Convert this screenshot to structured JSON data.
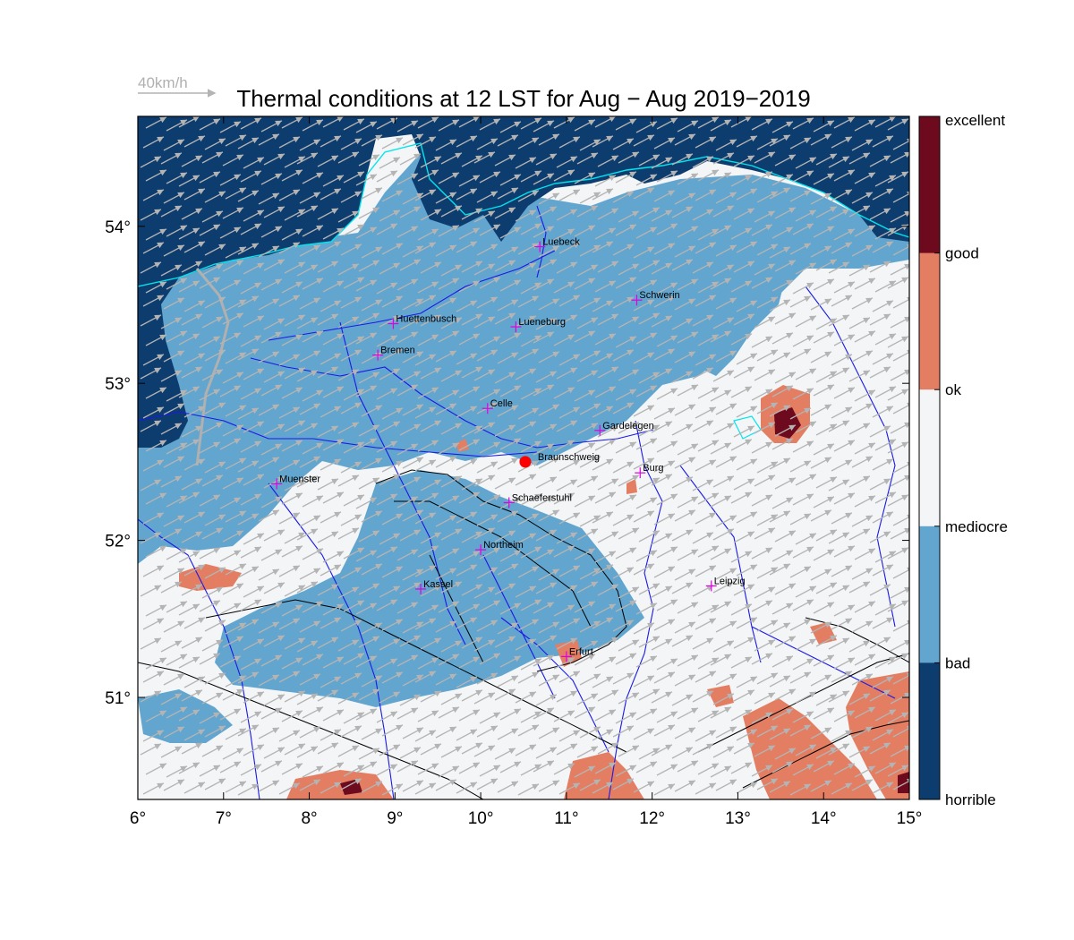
{
  "title": "Thermal conditions at 12 LST for Aug − Aug  2019−2019",
  "wind_reference": {
    "label": "40km/h"
  },
  "map": {
    "lon_range": [
      6,
      15
    ],
    "lat_range": [
      50.35,
      54.7
    ],
    "lon_ticks": [
      {
        "value": 6,
        "label": "6°"
      },
      {
        "value": 7,
        "label": "7°"
      },
      {
        "value": 8,
        "label": "8°"
      },
      {
        "value": 9,
        "label": "9°"
      },
      {
        "value": 10,
        "label": "10°"
      },
      {
        "value": 11,
        "label": "11°"
      },
      {
        "value": 12,
        "label": "12°"
      },
      {
        "value": 13,
        "label": "13°"
      },
      {
        "value": 14,
        "label": "14°"
      },
      {
        "value": 15,
        "label": "15°"
      }
    ],
    "lat_ticks": [
      {
        "value": 51,
        "label": "51°"
      },
      {
        "value": 52,
        "label": "52°"
      },
      {
        "value": 53,
        "label": "53°"
      },
      {
        "value": 54,
        "label": "54°"
      }
    ],
    "category_colors": {
      "horrible": "#0d3c6e",
      "bad": "#62a5ce",
      "mediocre": "#f3f5f7",
      "ok": "#e37e63",
      "good": "#6e0a1e"
    },
    "water_color": "#00e5ee",
    "river_color": "#1a1ae6",
    "coast_color": "#1a1ae6",
    "wind_arrow_color": "#b4b4b4",
    "wind_direction_deg": 28,
    "cities": [
      {
        "name": "Luebeck",
        "lon": 10.69,
        "lat": 53.87
      },
      {
        "name": "Huettenbusch",
        "lon": 8.98,
        "lat": 53.38
      },
      {
        "name": "Lueneburg",
        "lon": 10.41,
        "lat": 53.36
      },
      {
        "name": "Schwerin",
        "lon": 11.82,
        "lat": 53.53
      },
      {
        "name": "Bremen",
        "lon": 8.8,
        "lat": 53.18
      },
      {
        "name": "Celle",
        "lon": 10.08,
        "lat": 52.84
      },
      {
        "name": "Gardelegen",
        "lon": 11.39,
        "lat": 52.7
      },
      {
        "name": "Braunschweig",
        "lon": 10.52,
        "lat": 52.5,
        "marker": "home"
      },
      {
        "name": "Burg",
        "lon": 11.86,
        "lat": 52.43
      },
      {
        "name": "Muenster",
        "lon": 7.62,
        "lat": 52.36
      },
      {
        "name": "Schaeferstuhl",
        "lon": 10.33,
        "lat": 52.24
      },
      {
        "name": "Northeim",
        "lon": 10.0,
        "lat": 51.94
      },
      {
        "name": "Kassel",
        "lon": 9.3,
        "lat": 51.69
      },
      {
        "name": "Leipzig",
        "lon": 12.69,
        "lat": 51.71
      },
      {
        "name": "Erfurt",
        "lon": 11.0,
        "lat": 51.26
      }
    ]
  },
  "colorbar": {
    "labels": [
      "excellent",
      "good",
      "ok",
      "mediocre",
      "bad",
      "horrible"
    ],
    "colors": [
      "#6e0a1e",
      "#e37e63",
      "#f3f5f7",
      "#62a5ce",
      "#0d3c6e"
    ]
  }
}
